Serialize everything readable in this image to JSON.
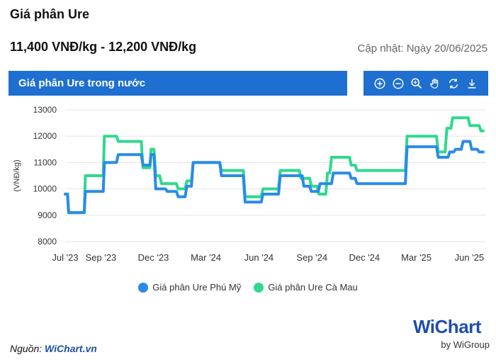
{
  "header": {
    "title": "Giá phân Ure",
    "price_range": "11,400 VNĐ/kg - 12,200 VNĐ/kg",
    "updated": "Cập nhật: Ngày 20/06/2025"
  },
  "banner": {
    "title": "Giá phân Ure trong nước"
  },
  "toolbar": {
    "icons": [
      "zoom-in-icon",
      "zoom-out-icon",
      "magnify-icon",
      "pan-hand-icon",
      "reset-icon",
      "download-icon"
    ]
  },
  "legend": {
    "series1": "Giá phân Ure Phú Mỹ",
    "series2": "Giá phân Ure Cà Mau"
  },
  "footer": {
    "source_label": "Nguồn:",
    "source_name": "WiChart.vn",
    "brand": "WiChart",
    "brand_sub": "by WiGroup"
  },
  "colors": {
    "accent": "#1e6fd0",
    "phu_my": "#2a8be8",
    "ca_mau": "#2fd98e"
  },
  "chart_data": {
    "type": "line",
    "ylabel": "(VNĐ/kg)",
    "ylim": [
      8000,
      13000
    ],
    "yticks": [
      8000,
      9000,
      10000,
      11000,
      12000,
      13000
    ],
    "xlim": [
      "2023-07-01",
      "2025-06-30"
    ],
    "xticks": [
      {
        "date": "2023-07-01",
        "label": "Jul '23"
      },
      {
        "date": "2023-09-01",
        "label": "Sep '23"
      },
      {
        "date": "2023-12-01",
        "label": "Dec '23"
      },
      {
        "date": "2024-03-01",
        "label": "Mar '24"
      },
      {
        "date": "2024-06-01",
        "label": "Jun '24"
      },
      {
        "date": "2024-09-01",
        "label": "Sep '24"
      },
      {
        "date": "2024-12-01",
        "label": "Dec '24"
      },
      {
        "date": "2025-03-01",
        "label": "Mar '25"
      },
      {
        "date": "2025-06-01",
        "label": "Jun '25"
      }
    ],
    "grid": true,
    "legend_position": "bottom",
    "series": [
      {
        "name": "Giá phân Ure Phú Mỹ",
        "color": "#2a8be8",
        "points": [
          [
            "2023-07-01",
            9800
          ],
          [
            "2023-07-05",
            9800
          ],
          [
            "2023-07-07",
            9100
          ],
          [
            "2023-08-03",
            9100
          ],
          [
            "2023-08-05",
            9900
          ],
          [
            "2023-09-05",
            9900
          ],
          [
            "2023-09-07",
            11000
          ],
          [
            "2023-09-28",
            11000
          ],
          [
            "2023-10-01",
            11300
          ],
          [
            "2023-11-10",
            11300
          ],
          [
            "2023-11-13",
            10900
          ],
          [
            "2023-11-25",
            10900
          ],
          [
            "2023-11-27",
            11300
          ],
          [
            "2023-12-02",
            11300
          ],
          [
            "2023-12-05",
            10000
          ],
          [
            "2023-12-22",
            10000
          ],
          [
            "2023-12-25",
            9900
          ],
          [
            "2024-01-10",
            9900
          ],
          [
            "2024-01-13",
            9700
          ],
          [
            "2024-01-25",
            9700
          ],
          [
            "2024-01-28",
            10100
          ],
          [
            "2024-02-05",
            10100
          ],
          [
            "2024-02-08",
            11000
          ],
          [
            "2024-03-25",
            11000
          ],
          [
            "2024-03-28",
            10500
          ],
          [
            "2024-05-05",
            10500
          ],
          [
            "2024-05-08",
            9500
          ],
          [
            "2024-06-05",
            9500
          ],
          [
            "2024-06-08",
            9800
          ],
          [
            "2024-07-05",
            9800
          ],
          [
            "2024-07-08",
            10500
          ],
          [
            "2024-08-15",
            10500
          ],
          [
            "2024-08-18",
            10100
          ],
          [
            "2024-08-28",
            10100
          ],
          [
            "2024-08-31",
            9900
          ],
          [
            "2024-09-12",
            9900
          ],
          [
            "2024-09-15",
            10200
          ],
          [
            "2024-10-05",
            10200
          ],
          [
            "2024-10-08",
            10600
          ],
          [
            "2024-11-05",
            10600
          ],
          [
            "2024-11-08",
            10400
          ],
          [
            "2024-11-15",
            10400
          ],
          [
            "2024-11-18",
            10200
          ],
          [
            "2025-02-10",
            10200
          ],
          [
            "2025-02-13",
            11600
          ],
          [
            "2025-04-05",
            11600
          ],
          [
            "2025-04-08",
            11200
          ],
          [
            "2025-04-25",
            11200
          ],
          [
            "2025-04-28",
            11400
          ],
          [
            "2025-05-05",
            11400
          ],
          [
            "2025-05-08",
            11500
          ],
          [
            "2025-05-18",
            11500
          ],
          [
            "2025-05-21",
            11800
          ],
          [
            "2025-06-02",
            11800
          ],
          [
            "2025-06-05",
            11500
          ],
          [
            "2025-06-15",
            11500
          ],
          [
            "2025-06-18",
            11400
          ],
          [
            "2025-06-25",
            11400
          ]
        ]
      },
      {
        "name": "Giá phân Ure Cà Mau",
        "color": "#2fd98e",
        "points": [
          [
            "2023-07-01",
            9800
          ],
          [
            "2023-07-05",
            9800
          ],
          [
            "2023-07-07",
            9100
          ],
          [
            "2023-08-03",
            9100
          ],
          [
            "2023-08-05",
            10500
          ],
          [
            "2023-09-05",
            10500
          ],
          [
            "2023-09-07",
            12000
          ],
          [
            "2023-09-28",
            12000
          ],
          [
            "2023-10-01",
            11800
          ],
          [
            "2023-11-10",
            11800
          ],
          [
            "2023-11-13",
            10800
          ],
          [
            "2023-11-25",
            10800
          ],
          [
            "2023-11-27",
            11500
          ],
          [
            "2023-12-02",
            11500
          ],
          [
            "2023-12-05",
            10500
          ],
          [
            "2023-12-12",
            10500
          ],
          [
            "2023-12-15",
            10200
          ],
          [
            "2024-01-10",
            10200
          ],
          [
            "2024-01-13",
            10000
          ],
          [
            "2024-01-25",
            10000
          ],
          [
            "2024-01-28",
            10300
          ],
          [
            "2024-02-05",
            10300
          ],
          [
            "2024-02-08",
            11000
          ],
          [
            "2024-03-25",
            11000
          ],
          [
            "2024-03-28",
            10700
          ],
          [
            "2024-05-05",
            10700
          ],
          [
            "2024-05-08",
            9700
          ],
          [
            "2024-06-05",
            9700
          ],
          [
            "2024-06-08",
            10000
          ],
          [
            "2024-07-05",
            10000
          ],
          [
            "2024-07-08",
            10700
          ],
          [
            "2024-08-10",
            10700
          ],
          [
            "2024-08-13",
            10400
          ],
          [
            "2024-08-28",
            10400
          ],
          [
            "2024-08-31",
            10100
          ],
          [
            "2024-09-10",
            10100
          ],
          [
            "2024-09-13",
            9800
          ],
          [
            "2024-09-25",
            9800
          ],
          [
            "2024-09-28",
            10600
          ],
          [
            "2024-10-02",
            10600
          ],
          [
            "2024-10-05",
            11200
          ],
          [
            "2024-11-05",
            11200
          ],
          [
            "2024-11-08",
            10900
          ],
          [
            "2024-11-15",
            10900
          ],
          [
            "2024-11-18",
            10700
          ],
          [
            "2025-02-10",
            10700
          ],
          [
            "2025-02-13",
            12000
          ],
          [
            "2025-04-05",
            12000
          ],
          [
            "2025-04-08",
            11400
          ],
          [
            "2025-04-20",
            11400
          ],
          [
            "2025-04-23",
            12300
          ],
          [
            "2025-04-30",
            12300
          ],
          [
            "2025-05-03",
            12700
          ],
          [
            "2025-05-30",
            12700
          ],
          [
            "2025-06-02",
            12400
          ],
          [
            "2025-06-18",
            12400
          ],
          [
            "2025-06-21",
            12200
          ],
          [
            "2025-06-25",
            12200
          ]
        ]
      }
    ]
  }
}
